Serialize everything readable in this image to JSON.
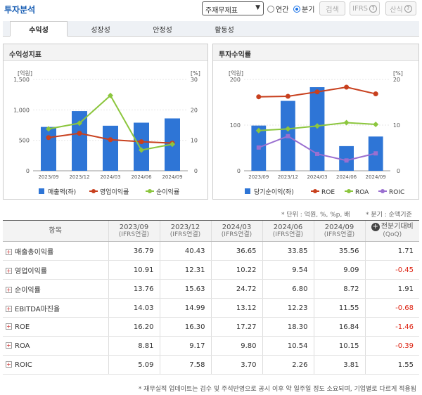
{
  "header": {
    "title": "투자분석",
    "select_value": "주재무제표",
    "radio_annual": "연간",
    "radio_quarter": "분기",
    "search_label": "검색",
    "ifrs_label": "IFRS",
    "calc_label": "산식"
  },
  "tabs": [
    {
      "label": "수익성"
    },
    {
      "label": "성장성"
    },
    {
      "label": "안정성"
    },
    {
      "label": "활동성"
    }
  ],
  "left_chart": {
    "panel_title": "수익성지표",
    "left_unit": "[억원]",
    "right_unit": "[%]",
    "left_ticks": [
      "1,500",
      "1,000",
      "500",
      "0"
    ],
    "right_ticks": [
      "30",
      "20",
      "10",
      "0"
    ],
    "legend": [
      "매출액(좌)",
      "영업이익률",
      "순이익률"
    ]
  },
  "right_chart": {
    "panel_title": "투자수익률",
    "left_unit": "[억원]",
    "right_unit": "[%]",
    "left_ticks": [
      "200",
      "100",
      "0"
    ],
    "right_ticks": [
      "20",
      "10",
      "0"
    ],
    "legend": [
      "당기순이익(좌)",
      "ROE",
      "ROA",
      "ROIC"
    ]
  },
  "chart_data": [
    {
      "type": "bar",
      "title": "수익성지표",
      "categories": [
        "2023/09",
        "2023/12",
        "2024/03",
        "2024/06",
        "2024/09"
      ],
      "ylim": [
        0,
        1500
      ],
      "y2lim": [
        0,
        30
      ],
      "series": [
        {
          "name": "매출액(좌)",
          "type": "bar",
          "axis": "left",
          "values": [
            720,
            980,
            740,
            790,
            860
          ],
          "color": "#2e75d6"
        },
        {
          "name": "영업이익률",
          "type": "line",
          "axis": "right",
          "values": [
            10.91,
            12.31,
            10.22,
            9.54,
            9.09
          ],
          "color": "#c8401e"
        },
        {
          "name": "순이익률",
          "type": "line",
          "axis": "right",
          "values": [
            13.76,
            15.63,
            24.72,
            6.8,
            8.72
          ],
          "color": "#8cc63e"
        }
      ]
    },
    {
      "type": "bar",
      "title": "투자수익률",
      "categories": [
        "2023/09",
        "2023/12",
        "2024/03",
        "2024/06",
        "2024/09"
      ],
      "ylim": [
        0,
        200
      ],
      "y2lim": [
        0,
        20
      ],
      "series": [
        {
          "name": "당기순이익(좌)",
          "type": "bar",
          "axis": "left",
          "values": [
            99,
            153,
            183,
            54,
            75
          ],
          "color": "#2e75d6"
        },
        {
          "name": "ROE",
          "type": "line",
          "axis": "right",
          "values": [
            16.2,
            16.3,
            17.27,
            18.3,
            16.84
          ],
          "color": "#c8401e"
        },
        {
          "name": "ROA",
          "type": "line",
          "axis": "right",
          "values": [
            8.81,
            9.17,
            9.8,
            10.54,
            10.15
          ],
          "color": "#8cc63e"
        },
        {
          "name": "ROIC",
          "type": "line",
          "axis": "right",
          "values": [
            5.09,
            7.58,
            3.7,
            2.26,
            3.81
          ],
          "color": "#9a6fd0"
        }
      ]
    }
  ],
  "notes": {
    "unit": "* 단위 : 억원, %, %p, 배",
    "period": "* 분기 : 순액기준",
    "footer": "* 재무실적 업데이트는 검수 및 주석반영으로 공시 이후 약 일주일 정도 소요되며, 기업별로 다르게 적용됨"
  },
  "table": {
    "head_item": "항목",
    "columns": [
      {
        "period": "2023/09",
        "sub": "(IFRS연결)"
      },
      {
        "period": "2023/12",
        "sub": "(IFRS연결)"
      },
      {
        "period": "2024/03",
        "sub": "(IFRS연결)"
      },
      {
        "period": "2024/06",
        "sub": "(IFRS연결)"
      },
      {
        "period": "2024/09",
        "sub": "(IFRS연결)"
      }
    ],
    "diff_head": "전분기대비",
    "diff_sub": "(QoQ)",
    "rows": [
      {
        "label": "매출총이익률",
        "values": [
          "36.79",
          "40.43",
          "36.65",
          "33.85",
          "35.56"
        ],
        "diff": "1.71"
      },
      {
        "label": "영업이익률",
        "values": [
          "10.91",
          "12.31",
          "10.22",
          "9.54",
          "9.09"
        ],
        "diff": "-0.45"
      },
      {
        "label": "순이익률",
        "values": [
          "13.76",
          "15.63",
          "24.72",
          "6.80",
          "8.72"
        ],
        "diff": "1.91"
      },
      {
        "label": "EBITDA마진율",
        "values": [
          "14.03",
          "14.99",
          "13.12",
          "12.23",
          "11.55"
        ],
        "diff": "-0.68"
      },
      {
        "label": "ROE",
        "values": [
          "16.20",
          "16.30",
          "17.27",
          "18.30",
          "16.84"
        ],
        "diff": "-1.46"
      },
      {
        "label": "ROA",
        "values": [
          "8.81",
          "9.17",
          "9.80",
          "10.54",
          "10.15"
        ],
        "diff": "-0.39"
      },
      {
        "label": "ROIC",
        "values": [
          "5.09",
          "7.58",
          "3.70",
          "2.26",
          "3.81"
        ],
        "diff": "1.55"
      }
    ]
  }
}
